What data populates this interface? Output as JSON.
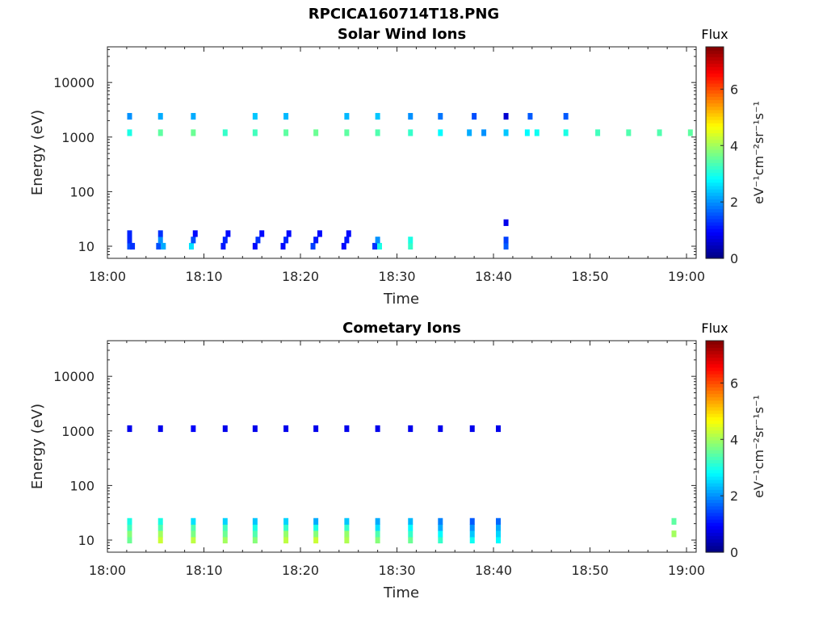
{
  "figure": {
    "title": "RPCICA160714T18.PNG"
  },
  "colorbar": {
    "title": "Flux",
    "label": "eV⁻¹cm⁻²sr⁻¹s⁻¹",
    "ticks": [
      "0",
      "2",
      "4",
      "6"
    ],
    "range": [
      0,
      7.5
    ]
  },
  "chart_data": [
    {
      "type": "heatmap",
      "title": "Solar Wind Ions",
      "xlabel": "Time",
      "ylabel": "Energy (eV)",
      "x_ticks": [
        "18:00",
        "18:10",
        "18:20",
        "18:30",
        "18:40",
        "18:50",
        "19:00"
      ],
      "y_ticks": [
        "10",
        "100",
        "1000",
        "10000"
      ],
      "yscale": "log",
      "xlim_minutes": [
        0,
        61
      ],
      "ylim": [
        6,
        45000
      ],
      "cells_note": "time in minutes after 18:00, energy in eV, flux in colorbar units",
      "cells": [
        {
          "t": 2.3,
          "e": 10,
          "f": 1.5
        },
        {
          "t": 2.3,
          "e": 13,
          "f": 1.2
        },
        {
          "t": 2.3,
          "e": 17,
          "f": 1.2
        },
        {
          "t": 2.6,
          "e": 10,
          "f": 1.3
        },
        {
          "t": 5.3,
          "e": 10,
          "f": 1.5
        },
        {
          "t": 5.5,
          "e": 13,
          "f": 2.0
        },
        {
          "t": 5.8,
          "e": 10,
          "f": 2.2
        },
        {
          "t": 5.5,
          "e": 17,
          "f": 1.3
        },
        {
          "t": 8.7,
          "e": 10,
          "f": 2.6
        },
        {
          "t": 8.9,
          "e": 13,
          "f": 1.5
        },
        {
          "t": 9.1,
          "e": 17,
          "f": 1.0
        },
        {
          "t": 12.0,
          "e": 10,
          "f": 1.1
        },
        {
          "t": 12.2,
          "e": 13,
          "f": 1.2
        },
        {
          "t": 12.5,
          "e": 17,
          "f": 1.0
        },
        {
          "t": 15.3,
          "e": 10,
          "f": 1.0
        },
        {
          "t": 15.6,
          "e": 13,
          "f": 1.3
        },
        {
          "t": 16.0,
          "e": 17,
          "f": 1.0
        },
        {
          "t": 18.2,
          "e": 10,
          "f": 1.0
        },
        {
          "t": 18.5,
          "e": 13,
          "f": 1.2
        },
        {
          "t": 18.8,
          "e": 17,
          "f": 1.0
        },
        {
          "t": 21.3,
          "e": 10,
          "f": 1.4
        },
        {
          "t": 21.6,
          "e": 13,
          "f": 1.1
        },
        {
          "t": 22.0,
          "e": 17,
          "f": 1.0
        },
        {
          "t": 24.5,
          "e": 10,
          "f": 1.0
        },
        {
          "t": 24.8,
          "e": 13,
          "f": 1.1
        },
        {
          "t": 25.0,
          "e": 17,
          "f": 1.0
        },
        {
          "t": 27.7,
          "e": 10,
          "f": 1.3
        },
        {
          "t": 28.2,
          "e": 10,
          "f": 3.0
        },
        {
          "t": 28.0,
          "e": 13,
          "f": 2.0
        },
        {
          "t": 31.4,
          "e": 10,
          "f": 3.2
        },
        {
          "t": 31.4,
          "e": 13,
          "f": 3.0
        },
        {
          "t": 41.3,
          "e": 10,
          "f": 1.6
        },
        {
          "t": 41.3,
          "e": 13,
          "f": 1.4
        },
        {
          "t": 41.3,
          "e": 27,
          "f": 0.8
        },
        {
          "t": 2.3,
          "e": 1200,
          "f": 3.0
        },
        {
          "t": 5.5,
          "e": 1200,
          "f": 3.5
        },
        {
          "t": 8.9,
          "e": 1200,
          "f": 3.6
        },
        {
          "t": 12.2,
          "e": 1200,
          "f": 3.2
        },
        {
          "t": 15.3,
          "e": 1200,
          "f": 3.3
        },
        {
          "t": 18.5,
          "e": 1200,
          "f": 3.5
        },
        {
          "t": 21.6,
          "e": 1200,
          "f": 3.6
        },
        {
          "t": 24.8,
          "e": 1200,
          "f": 3.5
        },
        {
          "t": 28.0,
          "e": 1200,
          "f": 3.4
        },
        {
          "t": 31.4,
          "e": 1200,
          "f": 3.2
        },
        {
          "t": 34.5,
          "e": 1200,
          "f": 2.8
        },
        {
          "t": 37.5,
          "e": 1200,
          "f": 2.2
        },
        {
          "t": 39.0,
          "e": 1200,
          "f": 2.0
        },
        {
          "t": 41.3,
          "e": 1200,
          "f": 2.4
        },
        {
          "t": 43.5,
          "e": 1200,
          "f": 2.8
        },
        {
          "t": 44.5,
          "e": 1200,
          "f": 2.9
        },
        {
          "t": 47.5,
          "e": 1200,
          "f": 3.0
        },
        {
          "t": 50.8,
          "e": 1200,
          "f": 3.3
        },
        {
          "t": 54.0,
          "e": 1200,
          "f": 3.4
        },
        {
          "t": 57.2,
          "e": 1200,
          "f": 3.4
        },
        {
          "t": 60.4,
          "e": 1200,
          "f": 3.5
        },
        {
          "t": 2.3,
          "e": 2400,
          "f": 2.0
        },
        {
          "t": 5.5,
          "e": 2400,
          "f": 2.2
        },
        {
          "t": 8.9,
          "e": 2400,
          "f": 2.2
        },
        {
          "t": 15.3,
          "e": 2400,
          "f": 2.4
        },
        {
          "t": 18.5,
          "e": 2400,
          "f": 2.3
        },
        {
          "t": 24.8,
          "e": 2400,
          "f": 2.3
        },
        {
          "t": 28.0,
          "e": 2400,
          "f": 2.4
        },
        {
          "t": 31.4,
          "e": 2400,
          "f": 2.0
        },
        {
          "t": 34.5,
          "e": 2400,
          "f": 1.8
        },
        {
          "t": 38.0,
          "e": 2400,
          "f": 1.5
        },
        {
          "t": 41.3,
          "e": 2400,
          "f": 0.6
        },
        {
          "t": 43.8,
          "e": 2400,
          "f": 1.6
        },
        {
          "t": 47.5,
          "e": 2400,
          "f": 1.6
        }
      ]
    },
    {
      "type": "heatmap",
      "title": "Cometary Ions",
      "xlabel": "Time",
      "ylabel": "Energy (eV)",
      "x_ticks": [
        "18:00",
        "18:10",
        "18:20",
        "18:30",
        "18:40",
        "18:50",
        "19:00"
      ],
      "y_ticks": [
        "10",
        "100",
        "1000",
        "10000"
      ],
      "yscale": "log",
      "xlim_minutes": [
        0,
        61
      ],
      "ylim": [
        6,
        45000
      ],
      "cells_note": "time in minutes after 18:00, energy in eV, flux in colorbar units",
      "cells": [
        {
          "t": 2.3,
          "e": 10,
          "f": 3.6
        },
        {
          "t": 2.3,
          "e": 13,
          "f": 3.8
        },
        {
          "t": 2.3,
          "e": 17,
          "f": 3.3
        },
        {
          "t": 2.3,
          "e": 22,
          "f": 3.0
        },
        {
          "t": 5.5,
          "e": 10,
          "f": 4.3
        },
        {
          "t": 5.5,
          "e": 13,
          "f": 4.0
        },
        {
          "t": 5.5,
          "e": 17,
          "f": 3.4
        },
        {
          "t": 5.5,
          "e": 22,
          "f": 3.0
        },
        {
          "t": 8.9,
          "e": 10,
          "f": 4.2
        },
        {
          "t": 8.9,
          "e": 13,
          "f": 3.7
        },
        {
          "t": 8.9,
          "e": 17,
          "f": 3.4
        },
        {
          "t": 8.9,
          "e": 22,
          "f": 2.6
        },
        {
          "t": 12.2,
          "e": 10,
          "f": 4.0
        },
        {
          "t": 12.2,
          "e": 13,
          "f": 3.6
        },
        {
          "t": 12.2,
          "e": 17,
          "f": 3.3
        },
        {
          "t": 12.2,
          "e": 22,
          "f": 2.5
        },
        {
          "t": 15.3,
          "e": 10,
          "f": 3.8
        },
        {
          "t": 15.3,
          "e": 13,
          "f": 3.4
        },
        {
          "t": 15.3,
          "e": 17,
          "f": 3.0
        },
        {
          "t": 15.3,
          "e": 22,
          "f": 2.4
        },
        {
          "t": 18.5,
          "e": 10,
          "f": 4.2
        },
        {
          "t": 18.5,
          "e": 13,
          "f": 3.9
        },
        {
          "t": 18.5,
          "e": 17,
          "f": 3.2
        },
        {
          "t": 18.5,
          "e": 22,
          "f": 2.5
        },
        {
          "t": 21.6,
          "e": 10,
          "f": 4.3
        },
        {
          "t": 21.6,
          "e": 13,
          "f": 3.8
        },
        {
          "t": 21.6,
          "e": 17,
          "f": 3.0
        },
        {
          "t": 21.6,
          "e": 22,
          "f": 2.2
        },
        {
          "t": 24.8,
          "e": 10,
          "f": 4.1
        },
        {
          "t": 24.8,
          "e": 13,
          "f": 3.9
        },
        {
          "t": 24.8,
          "e": 17,
          "f": 3.2
        },
        {
          "t": 24.8,
          "e": 22,
          "f": 2.4
        },
        {
          "t": 28.0,
          "e": 10,
          "f": 3.8
        },
        {
          "t": 28.0,
          "e": 13,
          "f": 3.4
        },
        {
          "t": 28.0,
          "e": 17,
          "f": 2.6
        },
        {
          "t": 28.0,
          "e": 22,
          "f": 2.2
        },
        {
          "t": 31.4,
          "e": 10,
          "f": 3.6
        },
        {
          "t": 31.4,
          "e": 13,
          "f": 3.2
        },
        {
          "t": 31.4,
          "e": 17,
          "f": 2.8
        },
        {
          "t": 31.4,
          "e": 22,
          "f": 2.3
        },
        {
          "t": 34.5,
          "e": 10,
          "f": 3.2
        },
        {
          "t": 34.5,
          "e": 13,
          "f": 2.8
        },
        {
          "t": 34.5,
          "e": 17,
          "f": 2.2
        },
        {
          "t": 34.5,
          "e": 22,
          "f": 1.9
        },
        {
          "t": 37.8,
          "e": 10,
          "f": 2.9
        },
        {
          "t": 37.8,
          "e": 13,
          "f": 2.4
        },
        {
          "t": 37.8,
          "e": 17,
          "f": 2.0
        },
        {
          "t": 37.8,
          "e": 22,
          "f": 1.6
        },
        {
          "t": 40.5,
          "e": 10,
          "f": 2.8
        },
        {
          "t": 40.5,
          "e": 13,
          "f": 2.5
        },
        {
          "t": 40.5,
          "e": 17,
          "f": 2.2
        },
        {
          "t": 40.5,
          "e": 22,
          "f": 1.7
        },
        {
          "t": 58.7,
          "e": 13,
          "f": 4.0
        },
        {
          "t": 58.7,
          "e": 22,
          "f": 3.5
        },
        {
          "t": 2.3,
          "e": 1100,
          "f": 0.8
        },
        {
          "t": 5.5,
          "e": 1100,
          "f": 0.8
        },
        {
          "t": 8.9,
          "e": 1100,
          "f": 0.9
        },
        {
          "t": 12.2,
          "e": 1100,
          "f": 0.8
        },
        {
          "t": 15.3,
          "e": 1100,
          "f": 0.8
        },
        {
          "t": 18.5,
          "e": 1100,
          "f": 0.8
        },
        {
          "t": 21.6,
          "e": 1100,
          "f": 0.8
        },
        {
          "t": 24.8,
          "e": 1100,
          "f": 0.8
        },
        {
          "t": 28.0,
          "e": 1100,
          "f": 0.8
        },
        {
          "t": 31.4,
          "e": 1100,
          "f": 0.8
        },
        {
          "t": 34.5,
          "e": 1100,
          "f": 0.8
        },
        {
          "t": 37.8,
          "e": 1100,
          "f": 0.8
        },
        {
          "t": 40.5,
          "e": 1100,
          "f": 0.8
        }
      ]
    }
  ]
}
